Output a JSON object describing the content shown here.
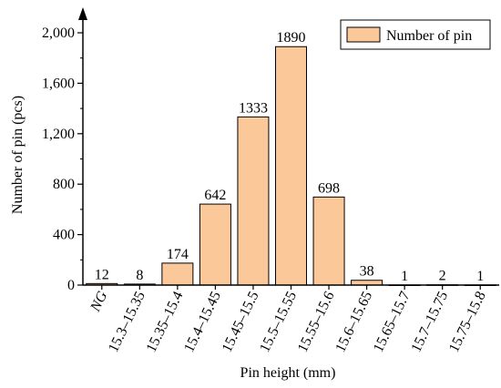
{
  "chart_data": {
    "type": "bar",
    "title": "",
    "xlabel": "Pin height (mm)",
    "ylabel": "Number of pin (pcs)",
    "ylim": [
      0,
      2100
    ],
    "yticks": [
      0,
      400,
      800,
      1200,
      1600,
      2000
    ],
    "ytick_labels": [
      "0",
      "400",
      "800",
      "1,200",
      "1,600",
      "2,000"
    ],
    "grid": false,
    "legend_position": "top-right",
    "bar_color": "#FBC89A",
    "bar_edge_color": "#000000",
    "categories": [
      "NG",
      "15.3–15.35",
      "15.35–15.4",
      "15.4–15.45",
      "15.45–15.5",
      "15.5–15.55",
      "15.55–15.6",
      "15.6–15.65",
      "15.65–15.7",
      "15.7–15.75",
      "15.75–15.8"
    ],
    "series": [
      {
        "name": "Number of pin",
        "values": [
          12,
          8,
          174,
          642,
          1333,
          1890,
          698,
          38,
          1,
          2,
          1
        ]
      }
    ]
  }
}
